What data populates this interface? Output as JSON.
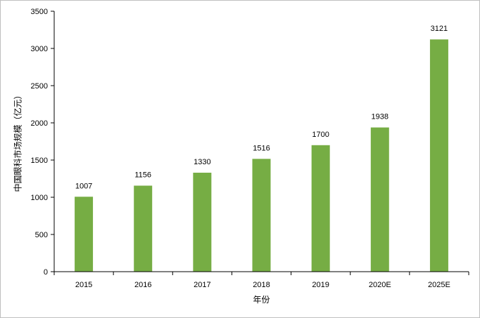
{
  "chart_data": {
    "type": "bar",
    "title": "",
    "xlabel": "年份",
    "ylabel": "中国眼科市场规模（亿元）",
    "categories": [
      "2015",
      "2016",
      "2017",
      "2018",
      "2019",
      "2020E",
      "2025E"
    ],
    "values": [
      1007,
      1156,
      1330,
      1516,
      1700,
      1938,
      3121
    ],
    "data_labels": [
      "1007",
      "1156",
      "1330",
      "1516",
      "1700",
      "1938",
      "3121"
    ],
    "yticks": [
      "0",
      "500",
      "1000",
      "1500",
      "2000",
      "2500",
      "3000",
      "3500"
    ],
    "ylim": [
      0,
      3500
    ],
    "grid": false,
    "legend": "none",
    "bar_color": "#76ad44"
  }
}
